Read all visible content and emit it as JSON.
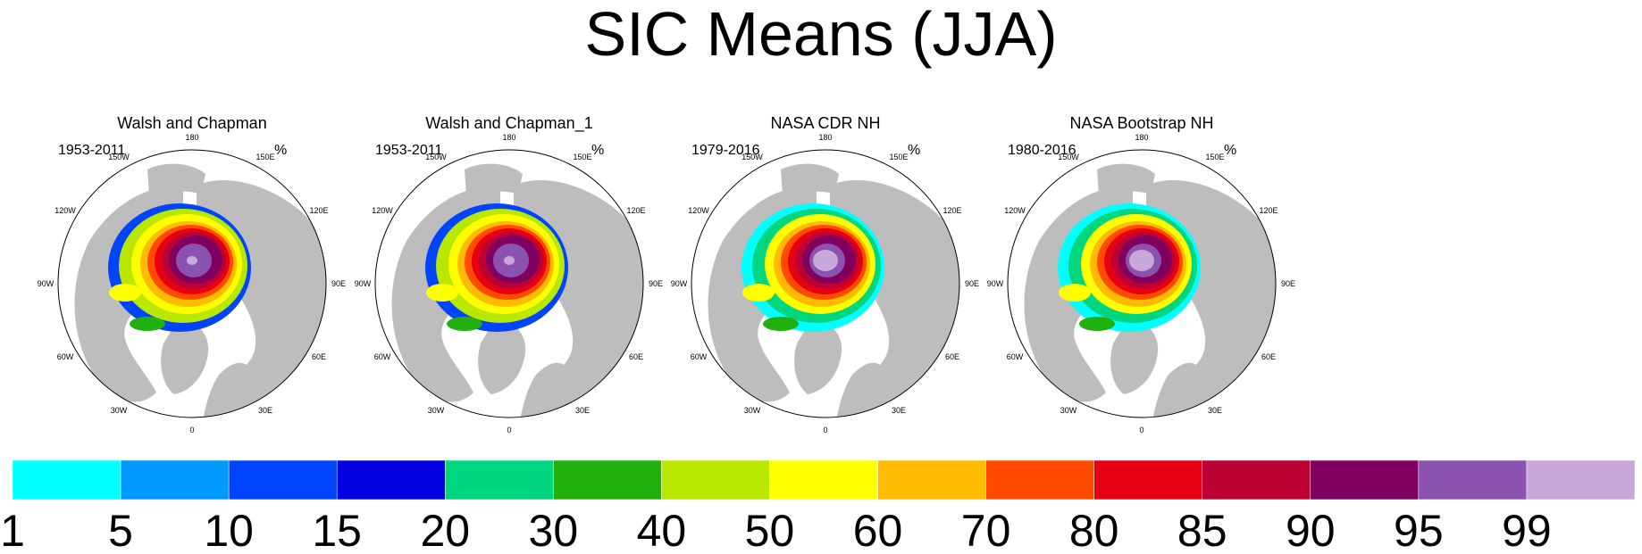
{
  "chart_data": {
    "type": "heatmap",
    "title": "SIC Means (JJA)",
    "units": "%",
    "panels": [
      {
        "title": "Walsh and Chapman",
        "years": "1953-2011",
        "units": "%"
      },
      {
        "title": "Walsh and Chapman_1",
        "years": "1953-2011",
        "units": "%"
      },
      {
        "title": "NASA CDR NH",
        "years": "1979-2016",
        "units": "%"
      },
      {
        "title": "NASA Bootstrap NH",
        "years": "1980-2016",
        "units": "%"
      }
    ],
    "longitude_labels": [
      "180",
      "150E",
      "120E",
      "90E",
      "60E",
      "30E",
      "0",
      "30W",
      "60W",
      "90W",
      "120W",
      "150W"
    ],
    "colorbar": {
      "levels": [
        "1",
        "5",
        "10",
        "15",
        "20",
        "30",
        "40",
        "50",
        "60",
        "70",
        "80",
        "85",
        "90",
        "95",
        "99"
      ],
      "colors": [
        "#00ffff",
        "#0099ff",
        "#0044ff",
        "#0000e0",
        "#00d680",
        "#22b00e",
        "#b8e800",
        "#ffff00",
        "#ffbb00",
        "#ff4a00",
        "#e60012",
        "#bd0033",
        "#800060",
        "#8c52b0",
        "#c8a8d8"
      ]
    }
  }
}
